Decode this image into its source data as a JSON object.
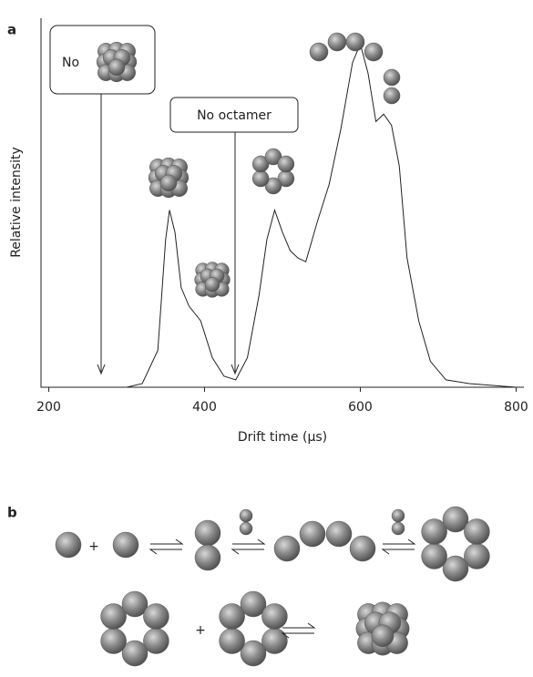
{
  "panels": [
    "a",
    "b"
  ],
  "chart_data": {
    "type": "line",
    "x_label": "Drift time (μs)",
    "y_label": "Relative intensity",
    "x": [
      200,
      300,
      320,
      340,
      350,
      355,
      362,
      370,
      380,
      395,
      410,
      425,
      440,
      455,
      470,
      480,
      490,
      500,
      510,
      520,
      530,
      545,
      560,
      575,
      590,
      600,
      610,
      620,
      630,
      640,
      650,
      660,
      675,
      690,
      710,
      740,
      800
    ],
    "values": [
      0,
      0,
      1,
      10,
      40,
      48,
      42,
      27,
      22,
      18,
      8,
      3,
      2,
      8,
      25,
      40,
      48,
      42,
      37,
      35,
      34,
      45,
      55,
      70,
      88,
      93,
      85,
      72,
      74,
      71,
      60,
      35,
      18,
      7,
      2,
      1,
      0
    ],
    "color": "#222222",
    "xlim": [
      190,
      810
    ],
    "ylim": [
      0,
      100
    ],
    "xticks": [
      200,
      400,
      600,
      800
    ],
    "annotations": [
      "No",
      "No octamer"
    ]
  },
  "scheme": {
    "plus": [
      "+",
      "+"
    ]
  }
}
